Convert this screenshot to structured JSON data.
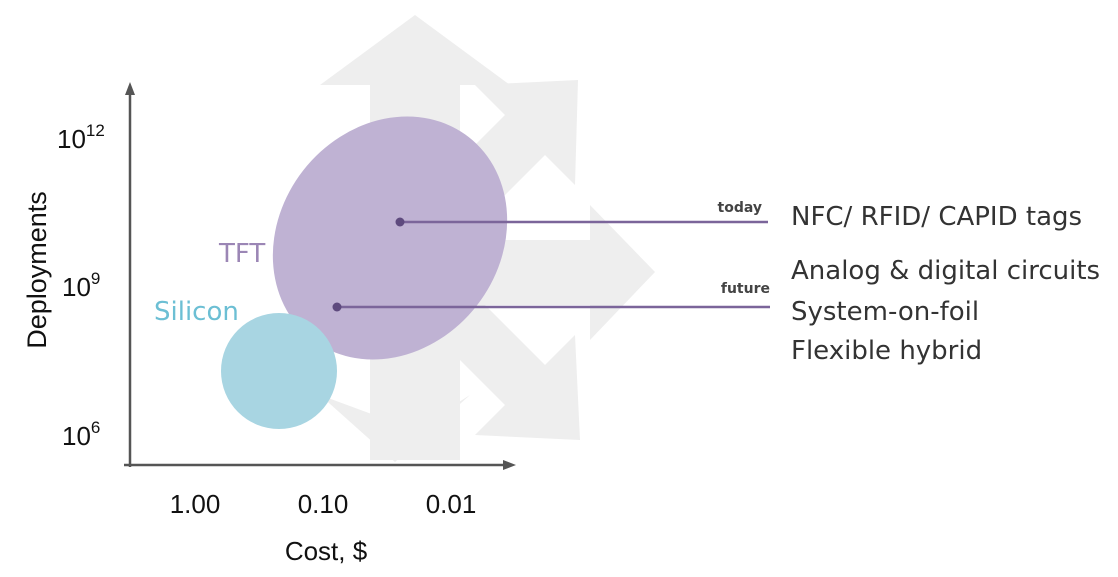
{
  "axes": {
    "y_label": "Deployments",
    "x_label": "Cost, $",
    "y_ticks": [
      {
        "base": "10",
        "exponent": "12"
      },
      {
        "base": "10",
        "exponent": "9"
      },
      {
        "base": "10",
        "exponent": "6"
      }
    ],
    "x_ticks": [
      "1.00",
      "0.10",
      "0.01"
    ]
  },
  "regions": {
    "tft": "TFT",
    "silicon": "Silicon"
  },
  "markers": {
    "today": {
      "label": "today",
      "text": "NFC/ RFID/ CAPID tags"
    },
    "future": {
      "label": "future",
      "lines": [
        "Analog & digital circuits",
        "System-on-foil",
        "Flexible hybrid"
      ]
    }
  }
}
